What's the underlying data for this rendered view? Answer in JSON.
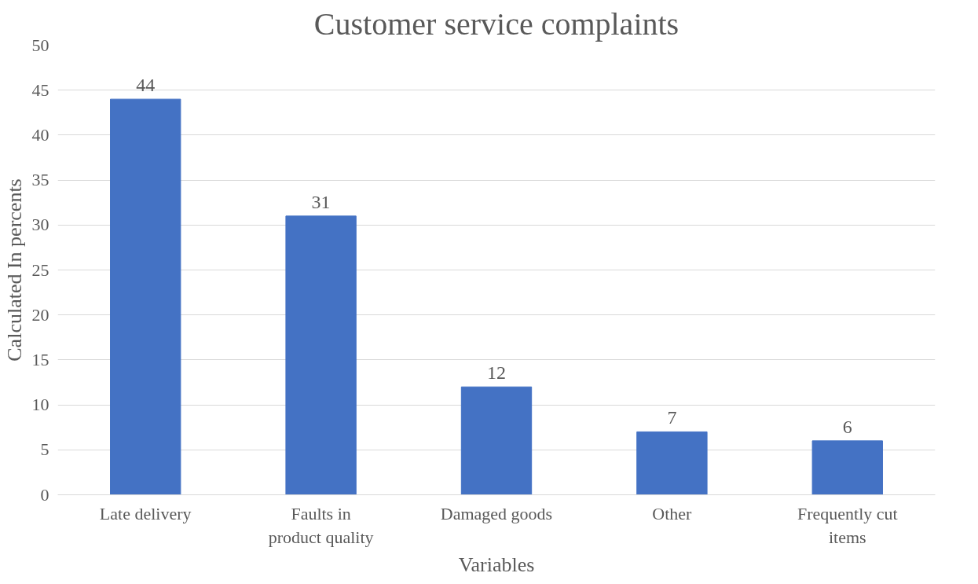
{
  "chart_data": {
    "type": "bar",
    "title": "Customer service complaints",
    "xlabel": "Variables",
    "ylabel": "Calculated In percents",
    "categories": [
      "Late delivery",
      "Faults in product quality",
      "Damaged goods",
      "Other",
      "Frequently cut items"
    ],
    "values": [
      44,
      31,
      12,
      7,
      6
    ],
    "color": "#4472c4",
    "ylim": [
      0,
      50
    ],
    "yticks": [
      0,
      5,
      10,
      15,
      20,
      25,
      30,
      35,
      40,
      45,
      50
    ],
    "grid": "y",
    "data_labels": true
  }
}
